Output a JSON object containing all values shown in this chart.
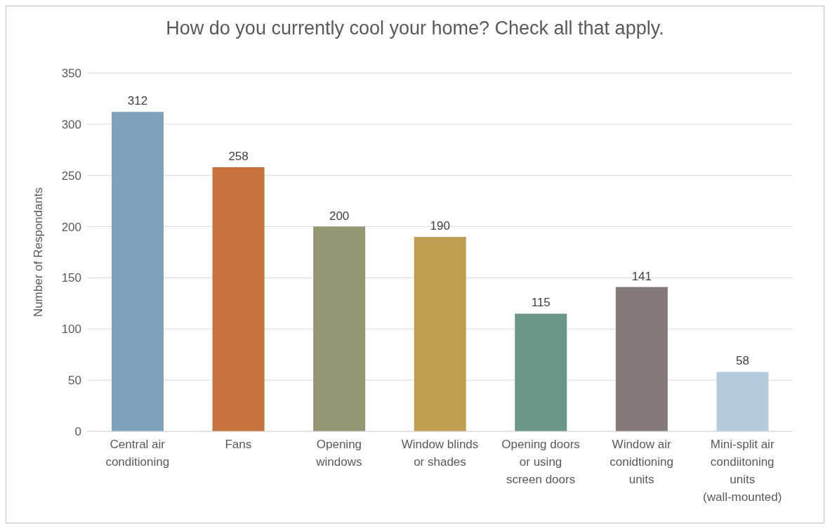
{
  "chart_data": {
    "type": "bar",
    "title": "How do you currently cool your home? Check all that apply.",
    "ylabel": "Number of Respondants",
    "categories": [
      "Central air conditioning",
      "Fans",
      "Opening windows",
      "Window blinds or shades",
      "Opening doors or using screen doors",
      "Window air conidtioning units",
      "Mini-split air condiitoning units (wall-mounted)"
    ],
    "values": [
      312,
      258,
      200,
      190,
      115,
      141,
      58
    ],
    "colors": [
      "#7fa2bc",
      "#c6723c",
      "#939671",
      "#c19d52",
      "#6a9589",
      "#857a78",
      "#b5cadd"
    ],
    "ylim": [
      0,
      350
    ],
    "yticks": [
      0,
      50,
      100,
      150,
      200,
      250,
      300,
      350
    ],
    "grid": "y",
    "data_labels": true
  }
}
